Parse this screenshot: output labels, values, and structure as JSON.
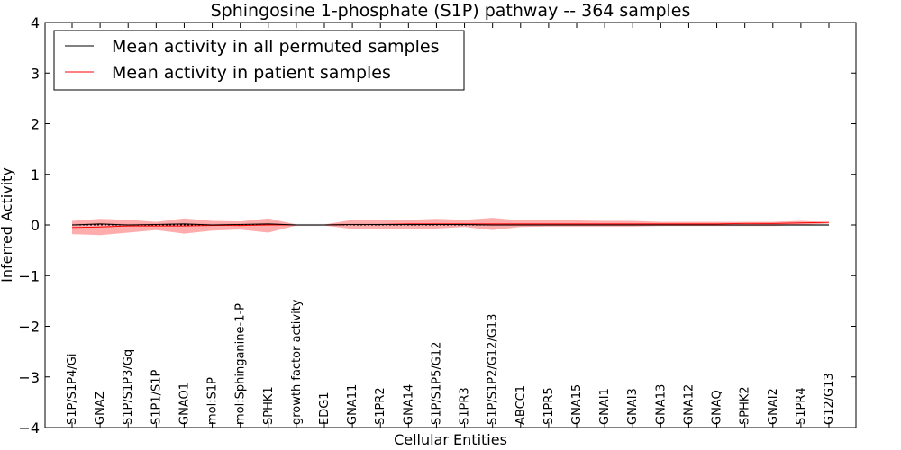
{
  "chart_data": {
    "type": "line",
    "title": "Sphingosine 1-phosphate (S1P) pathway -- 364 samples",
    "xlabel": "Cellular Entities",
    "ylabel": "Inferred Activity",
    "ylim": [
      -4,
      4
    ],
    "yticks": [
      "−4",
      "−3",
      "−2",
      "−1",
      "0",
      "1",
      "2",
      "3",
      "4"
    ],
    "legend_position": "top-left",
    "grid": false,
    "categories": [
      "S1P/S1P4/Gi",
      "GNAZ",
      "S1P/S1P3/Gq",
      "S1P1/S1P",
      "GNAO1",
      "mol:S1P",
      "mol:Sphinganine-1-P",
      "SPHK1",
      "growth factor activity",
      "EDG1",
      "GNA11",
      "S1PR2",
      "GNA14",
      "S1P/S1P5/G12",
      "S1PR3",
      "S1P/S1P2/G12/G13",
      "ABCC1",
      "S1PR5",
      "GNA15",
      "GNAI1",
      "GNAI3",
      "GNA13",
      "GNA12",
      "GNAQ",
      "SPHK2",
      "GNAI2",
      "S1PR4",
      "G12/G13"
    ],
    "series": [
      {
        "name": "Mean activity in all permuted samples",
        "color": "#000000",
        "values": [
          0.0,
          0.02,
          0.0,
          0.01,
          0.02,
          0.0,
          0.01,
          0.02,
          0.0,
          0.0,
          0.01,
          0.01,
          0.01,
          0.01,
          0.01,
          0.0,
          0.0,
          0.0,
          0.0,
          0.0,
          0.0,
          0.0,
          0.0,
          0.0,
          0.0,
          0.0,
          0.0,
          0.0
        ],
        "band_upper": [
          0.02,
          0.04,
          0.02,
          0.03,
          0.04,
          0.02,
          0.03,
          0.04,
          0.02,
          0.02,
          0.03,
          0.03,
          0.03,
          0.03,
          0.03,
          0.02,
          0.02,
          0.02,
          0.02,
          0.02,
          0.02,
          0.02,
          0.02,
          0.02,
          0.02,
          0.02,
          0.02,
          0.02
        ],
        "band_lower": [
          -0.02,
          0.0,
          -0.02,
          -0.01,
          0.0,
          -0.02,
          -0.01,
          0.0,
          -0.02,
          -0.02,
          -0.01,
          -0.01,
          -0.01,
          -0.01,
          -0.01,
          -0.02,
          -0.02,
          -0.02,
          -0.02,
          -0.02,
          -0.02,
          -0.02,
          -0.02,
          -0.02,
          -0.02,
          -0.02,
          -0.02,
          -0.02
        ]
      },
      {
        "name": "Mean activity in patient samples",
        "color": "#ff0000",
        "band_color": "#ff5a5a",
        "values": [
          -0.05,
          -0.04,
          -0.02,
          -0.02,
          -0.02,
          -0.01,
          -0.01,
          0.0,
          0.0,
          0.0,
          0.01,
          0.01,
          0.02,
          0.02,
          0.02,
          0.02,
          0.02,
          0.02,
          0.02,
          0.02,
          0.02,
          0.02,
          0.02,
          0.02,
          0.03,
          0.03,
          0.04,
          0.05
        ],
        "band_upper": [
          0.08,
          0.12,
          0.1,
          0.06,
          0.13,
          0.08,
          0.07,
          0.13,
          0.01,
          0.01,
          0.1,
          0.1,
          0.1,
          0.12,
          0.1,
          0.14,
          0.09,
          0.09,
          0.09,
          0.08,
          0.08,
          0.06,
          0.06,
          0.06,
          0.06,
          0.06,
          0.08,
          0.06
        ],
        "band_lower": [
          -0.18,
          -0.2,
          -0.15,
          -0.1,
          -0.17,
          -0.11,
          -0.09,
          -0.15,
          -0.01,
          -0.01,
          -0.08,
          -0.08,
          -0.08,
          -0.07,
          -0.04,
          -0.1,
          -0.04,
          -0.03,
          -0.03,
          -0.03,
          -0.03,
          -0.02,
          -0.02,
          -0.02,
          -0.02,
          -0.02,
          0.0,
          0.03
        ]
      }
    ]
  }
}
